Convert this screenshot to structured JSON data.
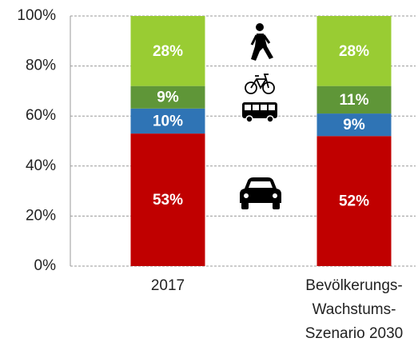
{
  "chart_data": {
    "type": "stacked_bar",
    "categories": [
      "2017",
      "Bevölkerungs-\nWachstums-\nSzenario 2030"
    ],
    "series": [
      {
        "color": "#c00000",
        "values": [
          53,
          52
        ],
        "value_labels": [
          "53%",
          "52%"
        ]
      },
      {
        "color": "#2f74b5",
        "values": [
          10,
          9
        ],
        "value_labels": [
          "10%",
          "9%"
        ]
      },
      {
        "color": "#5f9638",
        "values": [
          9,
          11
        ],
        "value_labels": [
          "9%",
          "11%"
        ]
      },
      {
        "color": "#99cc33",
        "values": [
          28,
          28
        ],
        "value_labels": [
          "28%",
          "28%"
        ]
      }
    ],
    "ylim": [
      0,
      100
    ],
    "yticks": [
      {
        "value": 0,
        "label": "0%"
      },
      {
        "value": 20,
        "label": "20%"
      },
      {
        "value": 40,
        "label": "40%"
      },
      {
        "value": 60,
        "label": "60%"
      },
      {
        "value": 80,
        "label": "80%"
      },
      {
        "value": 100,
        "label": "100%"
      }
    ],
    "grid": true
  }
}
